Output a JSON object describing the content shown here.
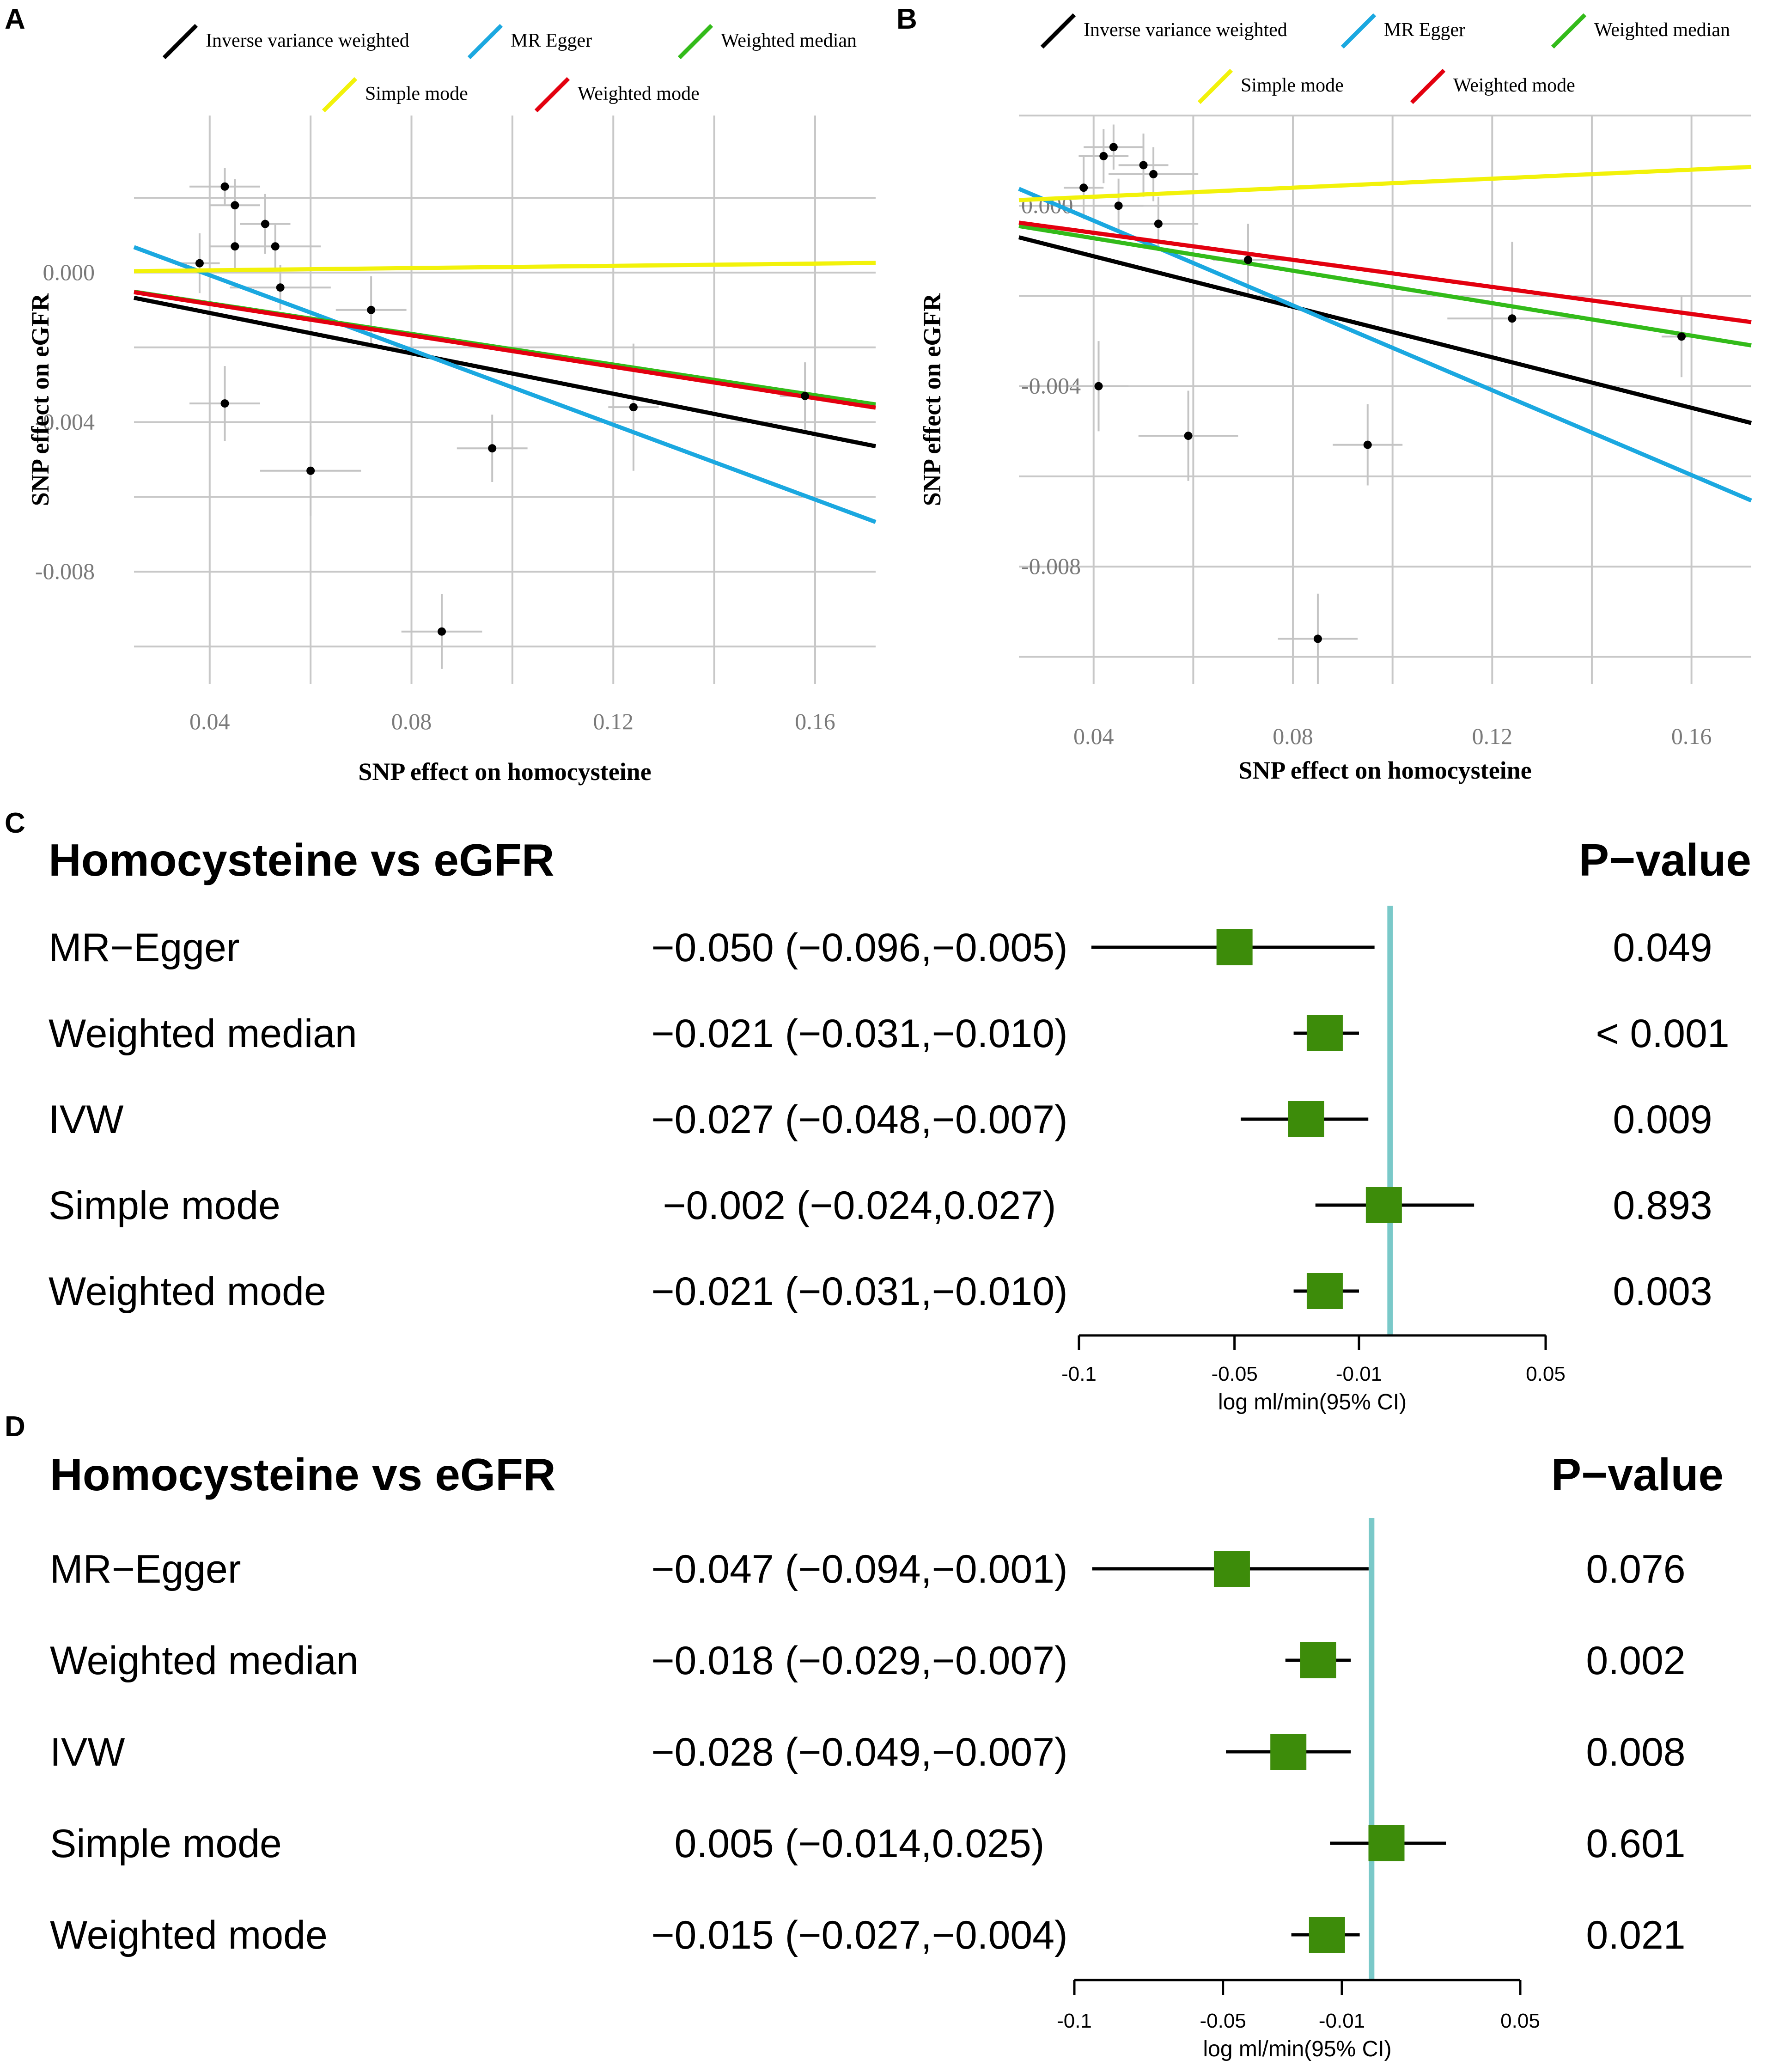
{
  "colors": {
    "ivw": "#000000",
    "egger": "#1ba8e0",
    "median": "#33bb1a",
    "simple": "#f2f20a",
    "wmode": "#e3000f",
    "grid": "#c8c8c8",
    "errbar": "#c4c4c4",
    "box": "#3d8c0a",
    "null_line": "#7ac9c9",
    "text": "#000000"
  },
  "panels": {
    "A": {
      "label": "A"
    },
    "B": {
      "label": "B"
    },
    "C": {
      "label": "C"
    },
    "D": {
      "label": "D"
    }
  },
  "chart_data": [
    {
      "panel": "A",
      "type": "scatter",
      "title": "",
      "xlabel": "SNP effect on homocysteine",
      "ylabel": "SNP effect on eGFR",
      "xlim": [
        0.025,
        0.172
      ],
      "ylim": [
        -0.011,
        0.0042
      ],
      "xticks": [
        0.04,
        0.08,
        0.12,
        0.16
      ],
      "xtick_labels": [
        "0.04",
        "0.08",
        "0.12",
        "0.16"
      ],
      "yticks": [
        0.0,
        -0.004,
        -0.008
      ],
      "ytick_labels": [
        "0.000",
        "-0.004",
        "-0.008"
      ],
      "legend": [
        "Inverse variance weighted",
        "MR Egger",
        "Weighted median",
        "Simple mode",
        "Weighted mode"
      ],
      "legend_position": "top",
      "points": [
        {
          "x": 0.038,
          "y": 0.00025,
          "xse": 0.004,
          "yse": 0.0008
        },
        {
          "x": 0.043,
          "y": 0.0023,
          "xse": 0.007,
          "yse": 0.0005
        },
        {
          "x": 0.045,
          "y": 0.0018,
          "xse": 0.005,
          "yse": 0.0007
        },
        {
          "x": 0.045,
          "y": 0.0007,
          "xse": 0.005,
          "yse": 0.0006
        },
        {
          "x": 0.051,
          "y": 0.0013,
          "xse": 0.005,
          "yse": 0.0008
        },
        {
          "x": 0.053,
          "y": 0.0007,
          "xse": 0.009,
          "yse": 0.0006
        },
        {
          "x": 0.054,
          "y": -0.0004,
          "xse": 0.01,
          "yse": 0.0006
        },
        {
          "x": 0.043,
          "y": -0.0035,
          "xse": 0.007,
          "yse": 0.001
        },
        {
          "x": 0.06,
          "y": -0.0053,
          "xse": 0.01,
          "yse": 0.0012
        },
        {
          "x": 0.072,
          "y": -0.001,
          "xse": 0.007,
          "yse": 0.0009
        },
        {
          "x": 0.086,
          "y": -0.0096,
          "xse": 0.008,
          "yse": 0.001
        },
        {
          "x": 0.096,
          "y": -0.0047,
          "xse": 0.007,
          "yse": 0.0009
        },
        {
          "x": 0.124,
          "y": -0.0036,
          "xse": 0.005,
          "yse": 0.0017
        },
        {
          "x": 0.158,
          "y": -0.0033,
          "xse": 0.005,
          "yse": 0.0009
        }
      ],
      "lines": [
        {
          "name": "Inverse variance weighted",
          "color_key": "ivw",
          "intercept": 0.0,
          "slope": -0.027
        },
        {
          "name": "MR Egger",
          "color_key": "egger",
          "intercept": 0.00193,
          "slope": -0.05
        },
        {
          "name": "Weighted median",
          "color_key": "median",
          "intercept": 0.0,
          "slope": -0.0205
        },
        {
          "name": "Simple mode",
          "color_key": "simple",
          "intercept": 0.0,
          "slope": 0.0015
        },
        {
          "name": "Weighted mode",
          "color_key": "wmode",
          "intercept": 0.0,
          "slope": -0.021
        }
      ]
    },
    {
      "panel": "B",
      "type": "scatter",
      "title": "",
      "xlabel": "SNP effect on homocysteine",
      "ylabel": "SNP effect on eGFR",
      "xlim": [
        0.025,
        0.172
      ],
      "ylim": [
        -0.0106,
        0.002
      ],
      "xticks": [
        0.04,
        0.08,
        0.12,
        0.16
      ],
      "xtick_labels": [
        "0.04",
        "0.08",
        "0.12",
        "0.16"
      ],
      "yticks": [
        0.0,
        -0.004,
        -0.008
      ],
      "ytick_labels": [
        "0.000",
        "-0.004",
        "-0.008"
      ],
      "legend": [
        "Inverse variance weighted",
        "MR Egger",
        "Weighted median",
        "Simple mode",
        "Weighted mode"
      ],
      "legend_position": "top",
      "points": [
        {
          "x": 0.038,
          "y": 0.0004,
          "xse": 0.004,
          "yse": 0.0007
        },
        {
          "x": 0.042,
          "y": 0.0011,
          "xse": 0.005,
          "yse": 0.0006
        },
        {
          "x": 0.044,
          "y": 0.0013,
          "xse": 0.006,
          "yse": 0.0005
        },
        {
          "x": 0.045,
          "y": 0.0,
          "xse": 0.005,
          "yse": 0.0006
        },
        {
          "x": 0.05,
          "y": 0.0009,
          "xse": 0.005,
          "yse": 0.0007
        },
        {
          "x": 0.052,
          "y": 0.0007,
          "xse": 0.009,
          "yse": 0.0006
        },
        {
          "x": 0.053,
          "y": -0.0004,
          "xse": 0.008,
          "yse": 0.0006
        },
        {
          "x": 0.041,
          "y": -0.004,
          "xse": 0.006,
          "yse": 0.001
        },
        {
          "x": 0.059,
          "y": -0.0051,
          "xse": 0.01,
          "yse": 0.001
        },
        {
          "x": 0.071,
          "y": -0.0012,
          "xse": 0.007,
          "yse": 0.0008
        },
        {
          "x": 0.085,
          "y": -0.0096,
          "xse": 0.008,
          "yse": 0.001
        },
        {
          "x": 0.095,
          "y": -0.0053,
          "xse": 0.007,
          "yse": 0.0009
        },
        {
          "x": 0.124,
          "y": -0.0025,
          "xse": 0.013,
          "yse": 0.0017
        },
        {
          "x": 0.158,
          "y": -0.0029,
          "xse": 0.004,
          "yse": 0.0009
        }
      ],
      "lines": [
        {
          "name": "Inverse variance weighted",
          "color_key": "ivw",
          "intercept": 0.0,
          "slope": -0.028
        },
        {
          "name": "MR Egger",
          "color_key": "egger",
          "intercept": 0.00155,
          "slope": -0.047
        },
        {
          "name": "Weighted median",
          "color_key": "median",
          "intercept": 0.0,
          "slope": -0.018
        },
        {
          "name": "Simple mode",
          "color_key": "simple",
          "intercept": 0.0,
          "slope": 0.005
        },
        {
          "name": "Weighted mode",
          "color_key": "wmode",
          "intercept": 0.0,
          "slope": -0.015
        }
      ]
    },
    {
      "panel": "C",
      "type": "forest",
      "title": "Homocysteine vs eGFR",
      "pvalue_header": "P−value",
      "xlabel": "log ml/min(95% CI)",
      "xlim": [
        -0.1,
        0.05
      ],
      "null_value": 0,
      "xticks": [
        -0.1,
        -0.05,
        -0.01,
        0.05
      ],
      "xtick_labels": [
        "-0.1",
        "-0.05",
        "-0.01",
        "0.05"
      ],
      "rows": [
        {
          "method": "MR−Egger",
          "estimate": -0.05,
          "lower": -0.096,
          "upper": -0.005,
          "ci_text": "−0.050 (−0.096,−0.005)",
          "p": "0.049"
        },
        {
          "method": "Weighted median",
          "estimate": -0.021,
          "lower": -0.031,
          "upper": -0.01,
          "ci_text": "−0.021 (−0.031,−0.010)",
          "p": "< 0.001"
        },
        {
          "method": "IVW",
          "estimate": -0.027,
          "lower": -0.048,
          "upper": -0.007,
          "ci_text": "−0.027 (−0.048,−0.007)",
          "p": "0.009"
        },
        {
          "method": "Simple mode",
          "estimate": -0.002,
          "lower": -0.024,
          "upper": 0.027,
          "ci_text": "−0.002 (−0.024,0.027)",
          "p": "0.893"
        },
        {
          "method": "Weighted mode",
          "estimate": -0.021,
          "lower": -0.031,
          "upper": -0.01,
          "ci_text": "−0.021 (−0.031,−0.010)",
          "p": "0.003"
        }
      ]
    },
    {
      "panel": "D",
      "type": "forest",
      "title": "Homocysteine vs eGFR",
      "pvalue_header": "P−value",
      "xlabel": "log ml/min(95% CI)",
      "xlim": [
        -0.1,
        0.05
      ],
      "null_value": 0,
      "xticks": [
        -0.1,
        -0.05,
        -0.01,
        0.05
      ],
      "xtick_labels": [
        "-0.1",
        "-0.05",
        "-0.01",
        "0.05"
      ],
      "rows": [
        {
          "method": "MR−Egger",
          "estimate": -0.047,
          "lower": -0.094,
          "upper": -0.001,
          "ci_text": "−0.047 (−0.094,−0.001)",
          "p": "0.076"
        },
        {
          "method": "Weighted median",
          "estimate": -0.018,
          "lower": -0.029,
          "upper": -0.007,
          "ci_text": "−0.018 (−0.029,−0.007)",
          "p": "0.002"
        },
        {
          "method": "IVW",
          "estimate": -0.028,
          "lower": -0.049,
          "upper": -0.007,
          "ci_text": "−0.028 (−0.049,−0.007)",
          "p": "0.008"
        },
        {
          "method": "Simple mode",
          "estimate": 0.005,
          "lower": -0.014,
          "upper": 0.025,
          "ci_text": "0.005 (−0.014,0.025)",
          "p": "0.601"
        },
        {
          "method": "Weighted mode",
          "estimate": -0.015,
          "lower": -0.027,
          "upper": -0.004,
          "ci_text": "−0.015 (−0.027,−0.004)",
          "p": "0.021"
        }
      ]
    }
  ]
}
